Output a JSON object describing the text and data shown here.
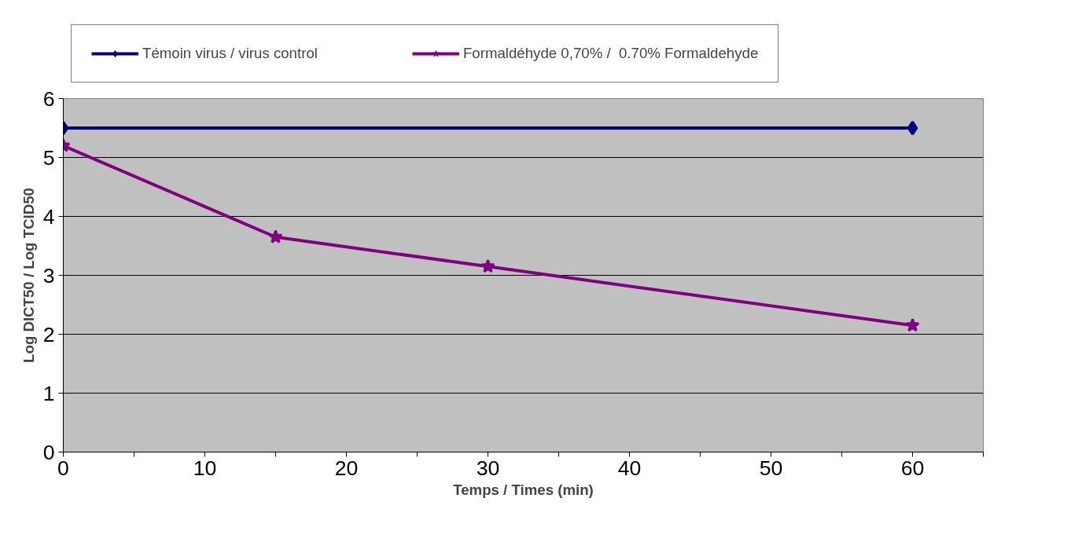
{
  "chart_data": {
    "type": "line",
    "xlabel": "Temps / Times (min)",
    "ylabel": "Log DICT50 / Log TCID50",
    "xlim": [
      0,
      65
    ],
    "xticks": [
      0,
      {
        "value": 5,
        "label": null
      },
      10,
      {
        "value": 15,
        "label": null
      },
      20,
      {
        "value": 25,
        "label": null
      },
      30,
      {
        "value": 35,
        "label": null
      },
      40,
      {
        "value": 45,
        "label": null
      },
      50,
      {
        "value": 55,
        "label": null
      },
      60,
      {
        "value": 65,
        "label": null
      }
    ],
    "ylim": [
      0,
      6
    ],
    "yticks": [
      0,
      1,
      2,
      3,
      4,
      5,
      6
    ],
    "grid": "y",
    "legend": "top",
    "series": [
      {
        "name": "Témoin virus / virus control",
        "color": "#000080",
        "marker": "diamond",
        "x": [
          0,
          60
        ],
        "values": [
          5.5,
          5.5
        ]
      },
      {
        "name": "Formaldéhyde 0,70% /  0.70% Formaldehyde",
        "color": "#800080",
        "marker": "star",
        "x": [
          0,
          15,
          30,
          60
        ],
        "values": [
          5.2,
          3.65,
          3.15,
          2.15
        ]
      }
    ]
  }
}
